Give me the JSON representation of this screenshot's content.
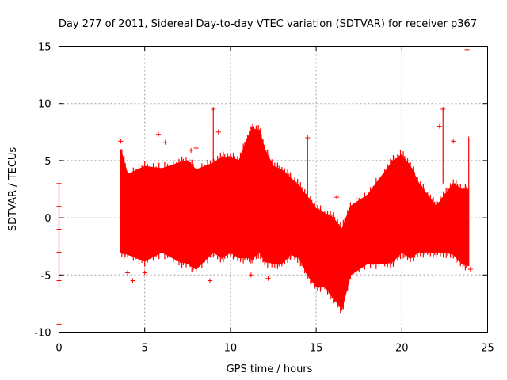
{
  "chart_data": {
    "type": "scatter",
    "title": "Day 277 of 2011, Sidereal Day-to-day VTEC variation (SDTVAR) for receiver p367",
    "xlabel": "GPS time / hours",
    "ylabel": "SDTVAR / TECUs",
    "xlim": [
      0,
      25
    ],
    "ylim": [
      -10,
      15
    ],
    "xticks": [
      0,
      5,
      10,
      15,
      20,
      25
    ],
    "yticks": [
      -10,
      -5,
      0,
      5,
      10,
      15
    ],
    "grid": true,
    "marker": "+",
    "series_color": "#ff0000",
    "series": [
      {
        "name": "SDTVAR",
        "envelope": {
          "x": [
            3.6,
            4.0,
            5.0,
            6.0,
            7.0,
            7.5,
            8.0,
            9.0,
            9.5,
            10.0,
            10.5,
            11.0,
            11.3,
            11.7,
            12.0,
            12.5,
            13.0,
            13.5,
            14.0,
            14.5,
            15.0,
            15.5,
            16.0,
            16.5,
            17.0,
            18.0,
            19.0,
            19.5,
            20.0,
            20.5,
            21.0,
            21.5,
            22.0,
            22.5,
            23.0,
            23.5,
            23.9
          ],
          "upper": [
            6.0,
            3.8,
            4.5,
            4.3,
            4.8,
            5.0,
            4.2,
            4.8,
            5.3,
            5.3,
            5.0,
            7.0,
            7.8,
            7.6,
            6.0,
            4.5,
            4.2,
            3.5,
            2.8,
            1.8,
            0.8,
            0.4,
            0.0,
            -1.0,
            1.0,
            2.0,
            4.0,
            5.0,
            5.5,
            4.5,
            3.0,
            2.0,
            1.0,
            2.0,
            3.0,
            2.5,
            2.5
          ],
          "lower": [
            -3.0,
            -3.2,
            -3.8,
            -3.0,
            -3.8,
            -4.0,
            -4.5,
            -3.0,
            -3.5,
            -3.0,
            -3.5,
            -3.5,
            -3.5,
            -3.0,
            -3.8,
            -4.0,
            -4.0,
            -3.2,
            -3.5,
            -5.0,
            -6.0,
            -6.0,
            -7.0,
            -8.0,
            -5.0,
            -4.0,
            -4.0,
            -3.8,
            -3.0,
            -3.5,
            -3.0,
            -3.0,
            -3.0,
            -3.0,
            -3.2,
            -4.0,
            -4.2
          ]
        },
        "outliers": [
          [
            0.0,
            3.0
          ],
          [
            0.0,
            1.0
          ],
          [
            0.0,
            -1.0
          ],
          [
            0.0,
            -3.0
          ],
          [
            0.0,
            -5.5
          ],
          [
            0.0,
            -9.3
          ],
          [
            3.6,
            6.7
          ],
          [
            4.0,
            -4.8
          ],
          [
            4.3,
            -5.5
          ],
          [
            5.0,
            -4.8
          ],
          [
            5.8,
            7.3
          ],
          [
            6.2,
            6.6
          ],
          [
            7.7,
            5.9
          ],
          [
            8.0,
            6.1
          ],
          [
            8.8,
            -5.5
          ],
          [
            9.0,
            9.5
          ],
          [
            9.3,
            7.5
          ],
          [
            11.2,
            -5.0
          ],
          [
            12.0,
            -3.8
          ],
          [
            12.2,
            -5.3
          ],
          [
            14.5,
            7.0
          ],
          [
            16.2,
            1.8
          ],
          [
            22.2,
            8.0
          ],
          [
            22.4,
            9.5
          ],
          [
            23.0,
            6.7
          ],
          [
            23.8,
            14.7
          ],
          [
            23.9,
            6.9
          ],
          [
            24.0,
            -4.5
          ]
        ]
      }
    ]
  }
}
